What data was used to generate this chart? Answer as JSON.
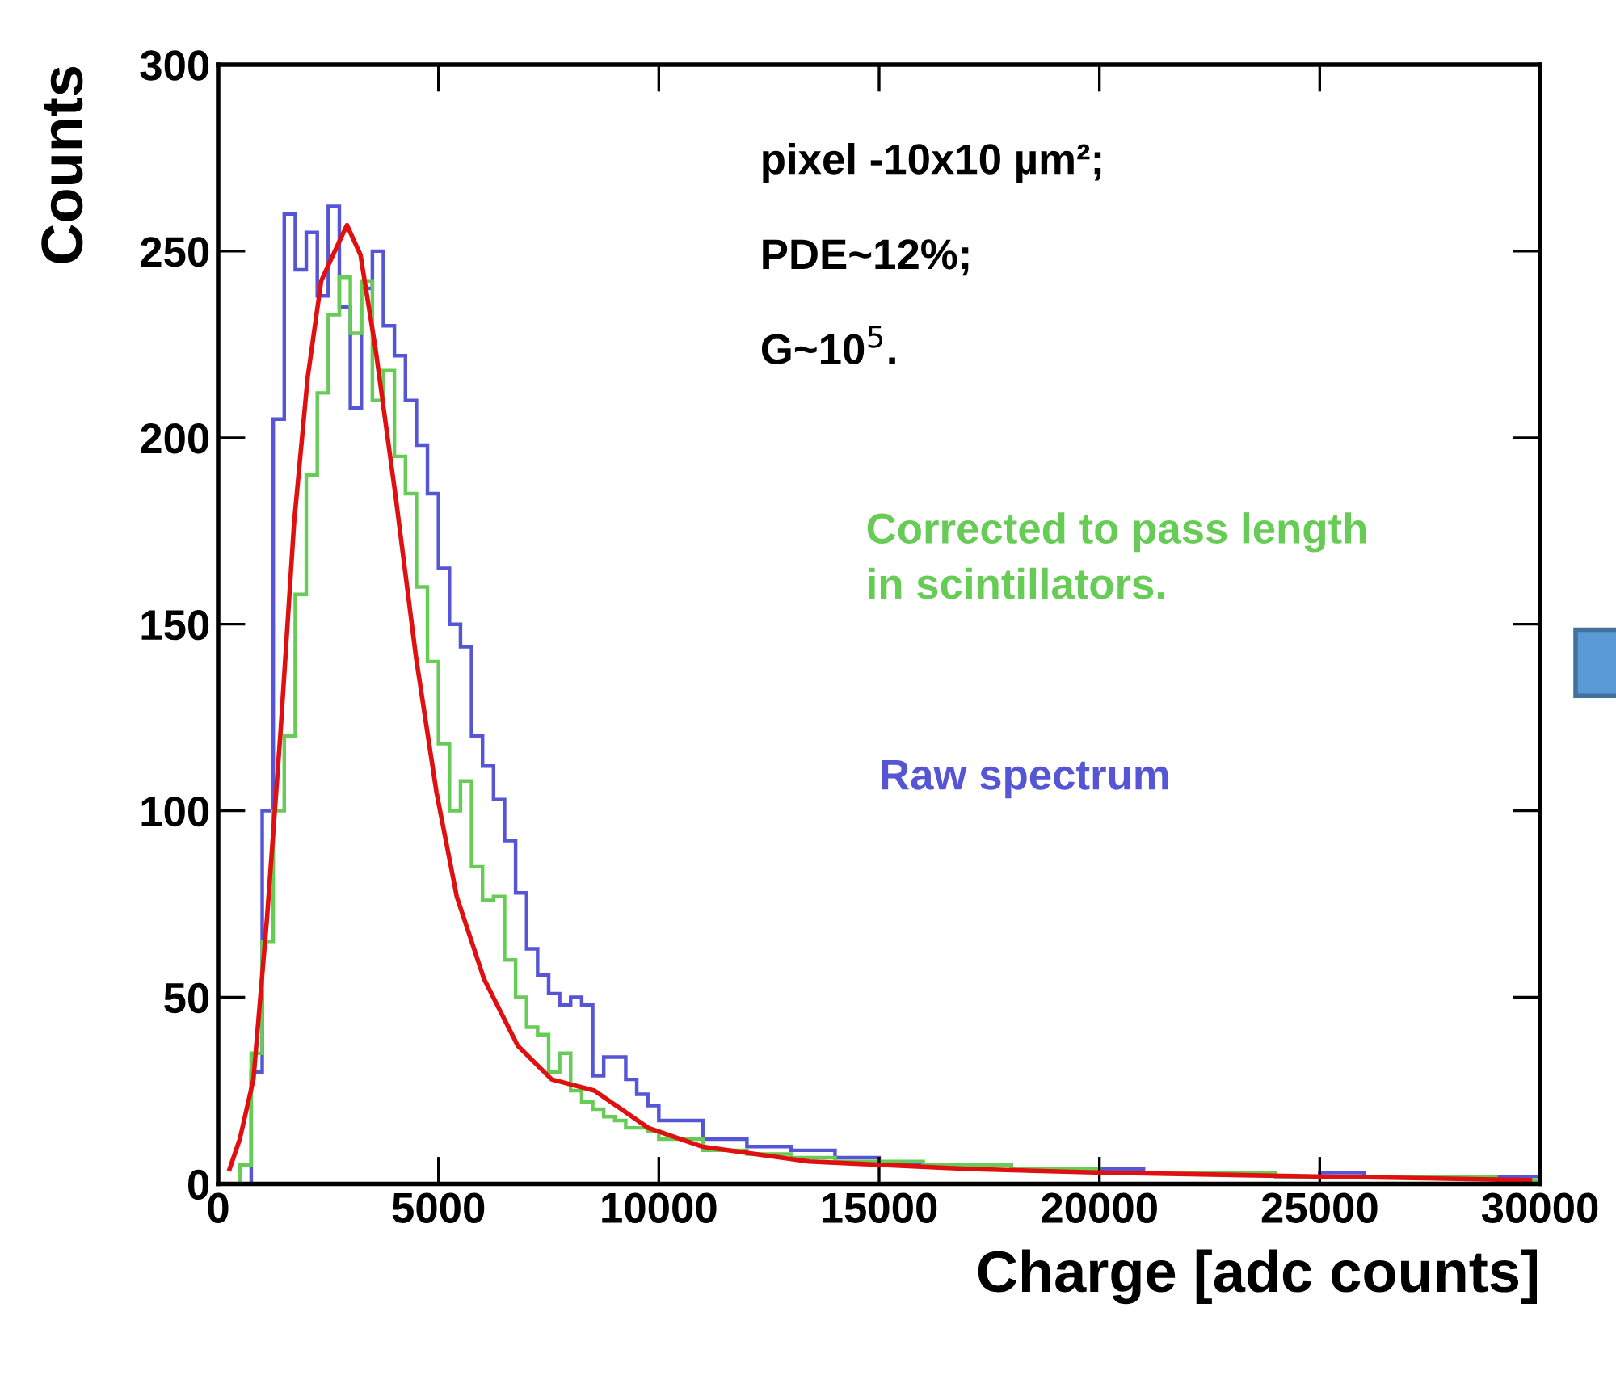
{
  "chart_data": {
    "type": "histogram",
    "xlabel": "Charge [adc counts]",
    "ylabel": "Counts",
    "bins": [
      0,
      250,
      500,
      750,
      1000,
      1250,
      1500,
      1750,
      2000,
      2250,
      2500,
      2750,
      3000,
      3250,
      3500,
      3750,
      4000,
      4250,
      4500,
      4750,
      5000,
      5250,
      5500,
      5750,
      6000,
      6250,
      6500,
      6750,
      7000,
      7250,
      7500,
      7750,
      8000,
      8250,
      8500,
      8750,
      9000,
      9250,
      9500,
      9750,
      10000,
      11000,
      12000,
      13000,
      14000,
      15000,
      16000,
      17000,
      18000,
      19000,
      20000,
      21000,
      22000,
      23000,
      24000,
      25000,
      26000,
      27000,
      28000,
      29000,
      30000
    ],
    "series": [
      {
        "name": "Raw spectrum",
        "color": "#5555d5",
        "values": [
          0,
          0,
          0,
          30,
          100,
          205,
          260,
          245,
          255,
          238,
          262,
          235,
          208,
          240,
          250,
          230,
          222,
          210,
          198,
          185,
          165,
          150,
          144,
          120,
          112,
          103,
          92,
          78,
          63,
          56,
          51,
          48,
          50,
          48,
          29,
          34,
          34,
          28,
          24,
          21,
          17,
          12,
          10,
          9,
          7,
          5,
          5,
          5,
          4,
          4,
          4,
          3,
          3,
          3,
          2,
          3,
          2,
          2,
          2,
          2
        ]
      },
      {
        "name": "Corrected to pass length\nin scintillators.",
        "color": "#66cc55",
        "values": [
          0,
          0,
          5,
          35,
          65,
          100,
          120,
          158,
          190,
          212,
          233,
          243,
          228,
          242,
          210,
          218,
          195,
          185,
          160,
          140,
          118,
          100,
          108,
          85,
          76,
          77,
          60,
          50,
          42,
          40,
          30,
          35,
          25,
          22,
          20,
          18,
          17,
          15,
          15,
          14,
          12,
          9,
          8,
          7,
          6,
          6,
          5,
          5,
          4,
          4,
          3,
          3,
          3,
          3,
          2,
          2,
          2,
          2,
          2,
          1
        ]
      },
      {
        "type": "line",
        "color": "#e01010",
        "x": [
          260,
          491,
          800,
          1107,
          1415,
          1722,
          2030,
          2338,
          2569,
          2923,
          3230,
          3569,
          4030,
          4492,
          4954,
          5415,
          6031,
          6800,
          7570,
          8540,
          9760,
          10977,
          13410,
          17060,
          20070,
          24900,
          29770
        ],
        "values": [
          4,
          12,
          28,
          71,
          121,
          177,
          216,
          242,
          248,
          257,
          249,
          224,
          184,
          141,
          105,
          77,
          55,
          37,
          28,
          25,
          15,
          10,
          6,
          4,
          3,
          2,
          1
        ]
      }
    ],
    "xlim": [
      0,
      30000
    ],
    "xticks": [
      0,
      5000,
      10000,
      15000,
      20000,
      25000,
      30000
    ],
    "ylim": [
      0,
      300
    ],
    "yticks": [
      0,
      50,
      100,
      150,
      200,
      250,
      300
    ],
    "annotations": [
      "pixel -10x10 µm²;",
      "PDE~12%;",
      "G~10$^{5}$."
    ]
  }
}
